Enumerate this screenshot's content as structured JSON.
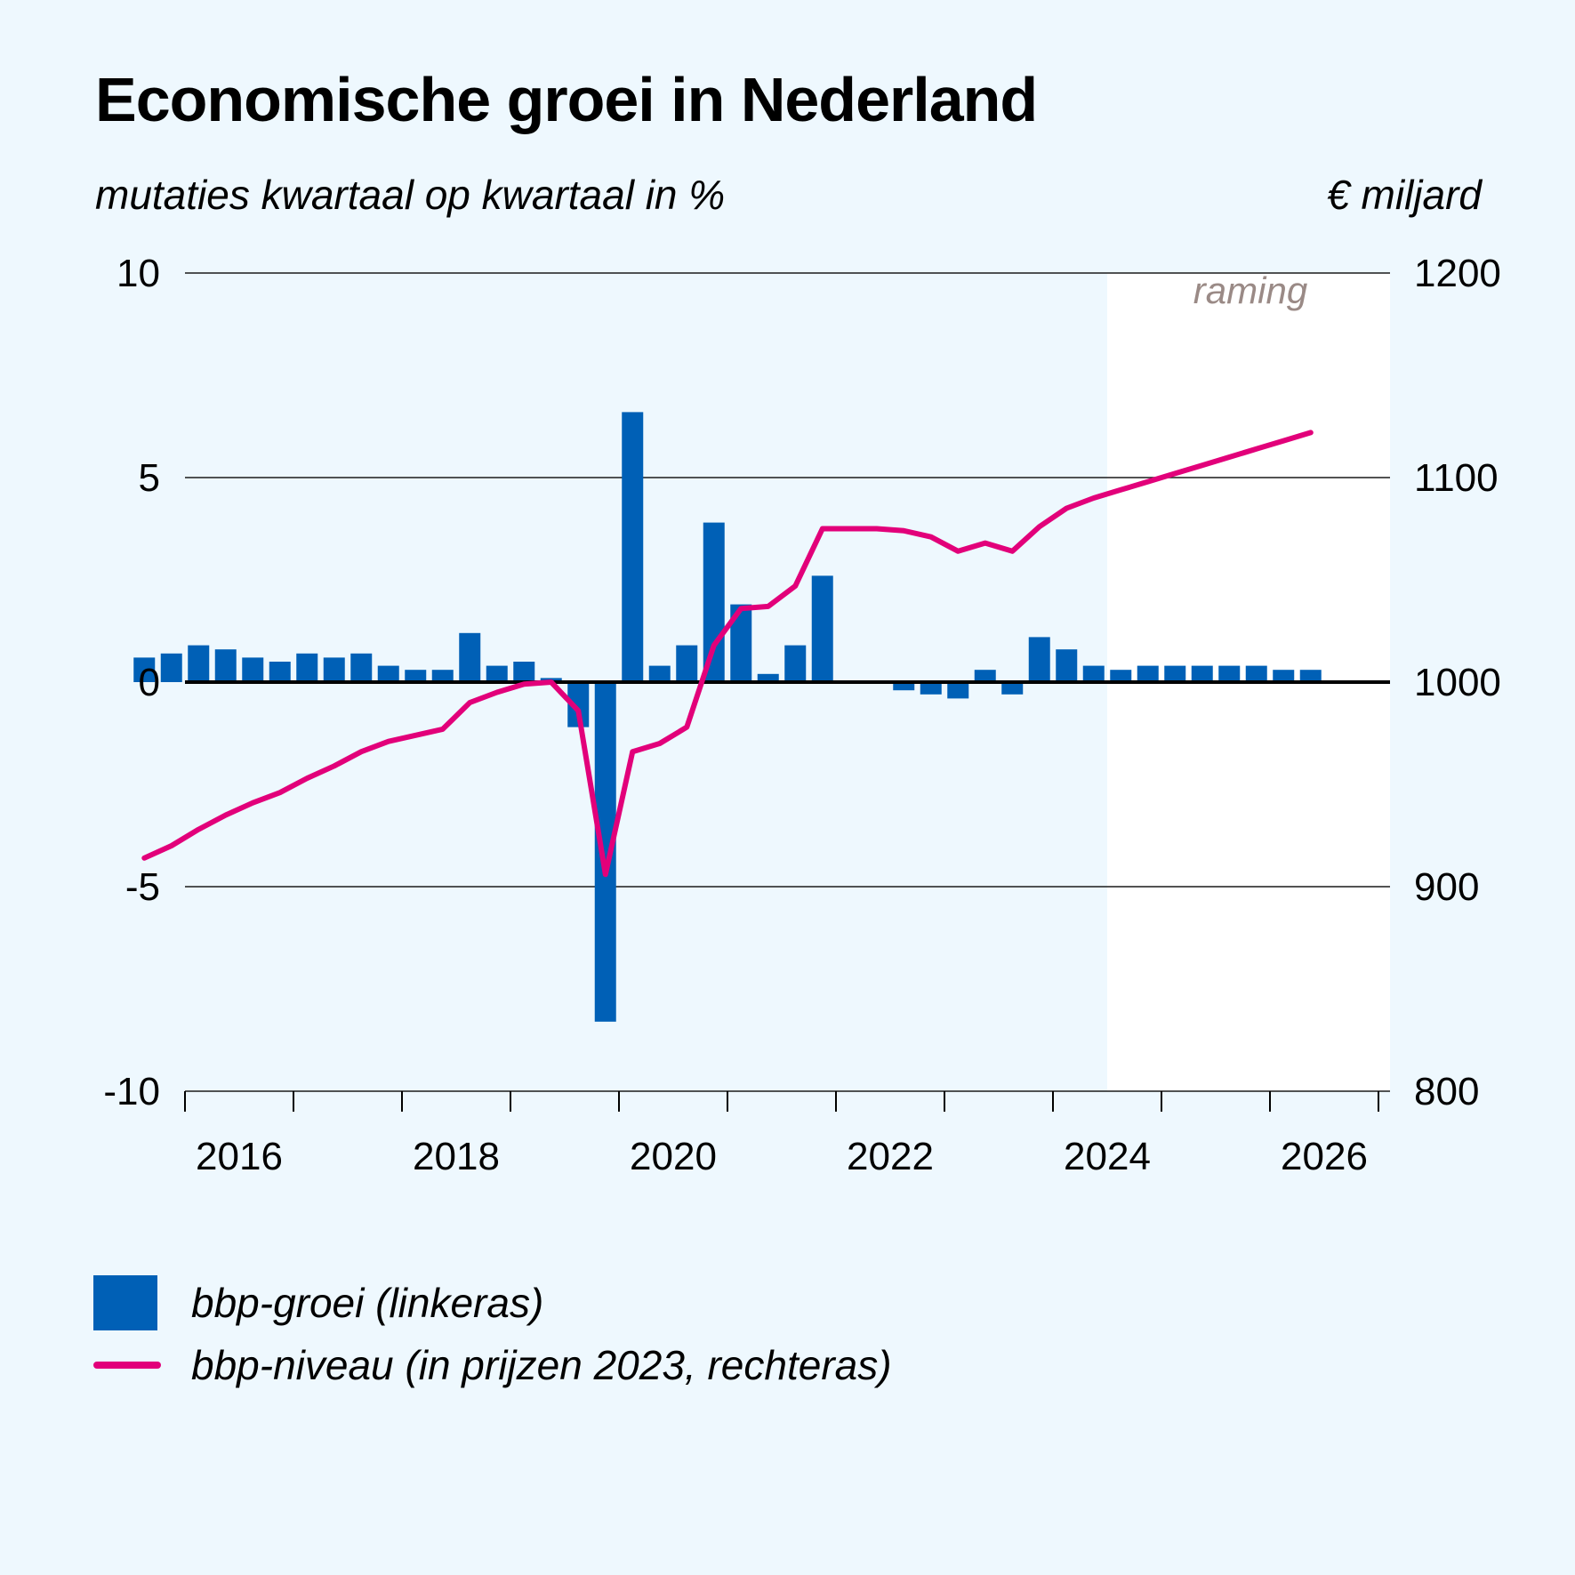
{
  "title": "Economische groei in Nederland",
  "left_axis_unit": "mutaties kwartaal op kwartaal in %",
  "right_axis_unit": "€ miljard",
  "forecast_label": "raming",
  "colors": {
    "background": "#eef8fe",
    "forecast_background": "#ffffff",
    "bar": "#0060b6",
    "line": "#e2007a",
    "grid": "#1a1a1a"
  },
  "legend": [
    {
      "label": "bbp-groei (linkeras)",
      "type": "bar",
      "color": "#0060b6"
    },
    {
      "label": "bbp-niveau (in prijzen 2023, rechteras)",
      "type": "line",
      "color": "#e2007a"
    }
  ],
  "chart_data": {
    "type": "bar",
    "x_ticks": [
      "2016",
      "2018",
      "2020",
      "2022",
      "2024",
      "2026"
    ],
    "quarters_start": "2015Q3",
    "forecast_start": "2024Q3",
    "left_axis": {
      "ylim": [
        -10,
        10
      ],
      "ticks": [
        "10",
        "5",
        "0",
        "-5",
        "-10"
      ]
    },
    "right_axis": {
      "ylim": [
        800,
        1200
      ],
      "ticks": [
        "1200",
        "1100",
        "1000",
        "900",
        "800"
      ]
    },
    "series": [
      {
        "name": "bbp-groei (linkeras)",
        "type": "bar",
        "axis": "left",
        "values": [
          0.6,
          0.7,
          0.9,
          0.8,
          0.6,
          0.5,
          0.7,
          0.6,
          0.7,
          0.4,
          0.3,
          0.3,
          1.2,
          0.4,
          0.5,
          0.1,
          -1.1,
          -8.3,
          6.6,
          0.4,
          0.9,
          3.9,
          1.9,
          0.2,
          0.9,
          2.6,
          0.0,
          0.0,
          -0.2,
          -0.3,
          -0.4,
          0.3,
          -0.3,
          1.1,
          0.8,
          0.4,
          0.3,
          0.4,
          0.4,
          0.4,
          0.4,
          0.4,
          0.3,
          0.3
        ]
      },
      {
        "name": "bbp-niveau (in prijzen 2023, rechteras)",
        "type": "line",
        "axis": "right",
        "values": [
          914,
          920,
          928,
          935,
          941,
          946,
          953,
          959,
          966,
          971,
          974,
          977,
          990,
          995,
          999,
          1000,
          986,
          906,
          966,
          970,
          978,
          1018,
          1036,
          1037,
          1047,
          1075,
          1075,
          1075,
          1074,
          1071,
          1064,
          1068,
          1064,
          1076,
          1085,
          1090,
          1094,
          1098,
          1102,
          1106,
          1110,
          1114,
          1118,
          1122
        ]
      }
    ]
  }
}
